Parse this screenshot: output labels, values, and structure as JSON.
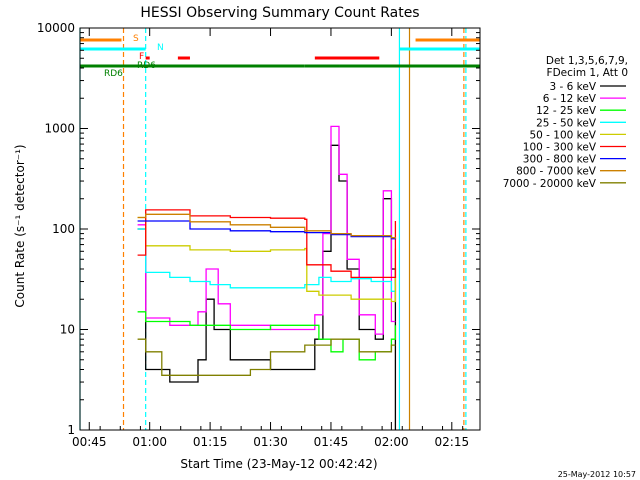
{
  "chart_data": {
    "type": "line",
    "title": "HESSI Observing Summary Count Rates",
    "xlabel": "Start Time (23-May-12 00:42:42)",
    "ylabel": "Count Rate (s⁻¹ detector⁻¹)",
    "y_scale": "log",
    "xlim": [
      "00:42:42",
      "02:22:00"
    ],
    "ylim": [
      1,
      10000
    ],
    "x_ticks": [
      "00:45",
      "01:00",
      "01:15",
      "01:30",
      "01:45",
      "02:00",
      "02:15"
    ],
    "y_ticks": [
      "1",
      "10",
      "100",
      "1000",
      "10000"
    ],
    "grid": false,
    "legend_position": "right",
    "legend_header": [
      "Det 1,3,5,6,7,9,",
      "FDecim 1, Att 0"
    ],
    "timestamp": "25-May-2012 10:57",
    "series": [
      {
        "name": "3 - 6 keV",
        "color": "#000000",
        "x": [
          "00:57:00",
          "00:59:00",
          "01:05:00",
          "01:10:00",
          "01:12:00",
          "01:14:00",
          "01:16:00",
          "01:20:00",
          "01:30:00",
          "01:38:30",
          "01:41:00",
          "01:43:00",
          "01:45:00",
          "01:47:00",
          "01:49:00",
          "01:52:00",
          "01:56:00",
          "01:58:00",
          "02:00:00",
          "02:01:00"
        ],
        "y": [
          100,
          4,
          3,
          3,
          5,
          20,
          10,
          5,
          4,
          4,
          8,
          60,
          680,
          300,
          40,
          10,
          8,
          200,
          40,
          1
        ]
      },
      {
        "name": "6 - 12 keV",
        "color": "#ff00ff",
        "x": [
          "00:57:00",
          "00:59:00",
          "01:05:00",
          "01:10:00",
          "01:12:00",
          "01:14:00",
          "01:17:00",
          "01:20:00",
          "01:30:00",
          "01:38:30",
          "01:41:00",
          "01:43:00",
          "01:45:00",
          "01:47:00",
          "01:49:00",
          "01:52:00",
          "01:56:00",
          "01:58:00",
          "02:00:00",
          "02:01:00"
        ],
        "y": [
          110,
          13,
          11,
          11,
          15,
          40,
          18,
          11,
          10,
          10,
          14,
          90,
          1050,
          350,
          50,
          14,
          9,
          240,
          12,
          12
        ]
      },
      {
        "name": "12 - 25 keV",
        "color": "#00ff00",
        "x": [
          "00:57:00",
          "00:59:00",
          "01:10:00",
          "01:20:00",
          "01:30:00",
          "01:38:30",
          "01:42:00",
          "01:45:00",
          "01:48:00",
          "01:52:00",
          "01:56:00",
          "02:00:00",
          "02:01:00"
        ],
        "y": [
          15,
          12,
          11,
          10,
          11,
          11,
          8,
          6,
          8,
          5,
          6,
          8,
          11
        ]
      },
      {
        "name": "25 - 50 keV",
        "color": "#00ffff",
        "x": [
          "00:57:00",
          "00:59:00",
          "01:05:00",
          "01:10:00",
          "01:13:00",
          "01:15:00",
          "01:20:00",
          "01:30:00",
          "01:38:30",
          "01:42:00",
          "01:45:00",
          "01:50:00",
          "01:55:00",
          "02:00:00",
          "02:01:00"
        ],
        "y": [
          100,
          37,
          33,
          30,
          30,
          28,
          26,
          26,
          28,
          33,
          30,
          32,
          30,
          24,
          28
        ]
      },
      {
        "name": "50 - 100 keV",
        "color": "#cccc00",
        "x": [
          "00:57:00",
          "00:59:00",
          "01:10:00",
          "01:20:00",
          "01:30:00",
          "01:38:30",
          "01:39:00",
          "01:42:00",
          "01:45:00",
          "01:50:00",
          "02:00:00",
          "02:01:00"
        ],
        "y": [
          130,
          68,
          62,
          60,
          62,
          64,
          24,
          22,
          22,
          20,
          19,
          64
        ]
      },
      {
        "name": "100 - 300 keV",
        "color": "#ff0000",
        "x": [
          "00:57:00",
          "00:59:00",
          "01:10:00",
          "01:20:00",
          "01:30:00",
          "01:38:30",
          "01:39:00",
          "01:45:00",
          "01:50:00",
          "02:00:00",
          "02:01:00"
        ],
        "y": [
          55,
          155,
          135,
          130,
          128,
          125,
          44,
          38,
          33,
          33,
          120
        ]
      },
      {
        "name": "300 - 800 keV",
        "color": "#0000ff",
        "x": [
          "00:57:00",
          "00:59:00",
          "01:10:00",
          "01:20:00",
          "01:30:00",
          "01:38:30",
          "01:45:00",
          "01:50:00",
          "02:00:00",
          "02:01:00"
        ],
        "y": [
          120,
          120,
          100,
          96,
          94,
          92,
          88,
          84,
          80,
          82
        ]
      },
      {
        "name": "800 - 7000 keV",
        "color": "#cc8000",
        "x": [
          "00:57:00",
          "00:59:00",
          "01:10:00",
          "01:20:00",
          "01:30:00",
          "01:38:30",
          "01:45:00",
          "01:50:00",
          "02:00:00",
          "02:01:00"
        ],
        "y": [
          130,
          140,
          118,
          110,
          104,
          96,
          90,
          86,
          82,
          80
        ]
      },
      {
        "name": "7000 - 20000 keV",
        "color": "#808000",
        "x": [
          "00:57:00",
          "00:59:00",
          "01:03:00",
          "01:08:00",
          "01:15:00",
          "01:25:00",
          "01:30:00",
          "01:38:30",
          "01:45:00",
          "01:52:00",
          "02:00:00",
          "02:01:00"
        ],
        "y": [
          8,
          6,
          3.5,
          3.5,
          3.5,
          4,
          6,
          7,
          8,
          6,
          7,
          7
        ]
      }
    ],
    "flag_labels": [
      {
        "text": "S",
        "color": "#ff8000"
      },
      {
        "text": "N",
        "color": "#00ffff"
      },
      {
        "text": "F",
        "color": "#ff0000"
      },
      {
        "text": "RD6",
        "color": "#008000"
      },
      {
        "text": "RD6",
        "color": "#008000"
      }
    ],
    "flag_bars": [
      {
        "color": "#ff8000",
        "spans": [
          [
            "00:42:42",
            "00:53:00"
          ],
          [
            "02:06:00",
            "02:22:00"
          ]
        ]
      },
      {
        "color": "#00ffff",
        "spans": [
          [
            "00:42:42",
            "00:59:00"
          ],
          [
            "02:02:00",
            "02:22:00"
          ]
        ]
      },
      {
        "color": "#ff0000",
        "spans": [
          [
            "00:59:00",
            "01:00:00"
          ],
          [
            "01:07:00",
            "01:10:00"
          ],
          [
            "01:41:00",
            "01:57:00"
          ]
        ]
      },
      {
        "color": "#008000",
        "spans": [
          [
            "00:42:42",
            "01:38:30"
          ],
          [
            "01:38:30",
            "01:47:00"
          ],
          [
            "01:47:00",
            "02:22:00"
          ]
        ]
      }
    ],
    "vlines": [
      {
        "time": "00:42:42",
        "color": "#00ffff",
        "style": "solid"
      },
      {
        "time": "00:53:30",
        "color": "#ff8000",
        "style": "dashed"
      },
      {
        "time": "00:59:00",
        "color": "#00ffff",
        "style": "dashed"
      },
      {
        "time": "02:02:00",
        "color": "#00ffff",
        "style": "solid"
      },
      {
        "time": "02:04:30",
        "color": "#cc8000",
        "style": "solid"
      },
      {
        "time": "02:18:00",
        "color": "#ff8000",
        "style": "dashed"
      },
      {
        "time": "02:18:30",
        "color": "#00ffff",
        "style": "dashed"
      }
    ]
  }
}
